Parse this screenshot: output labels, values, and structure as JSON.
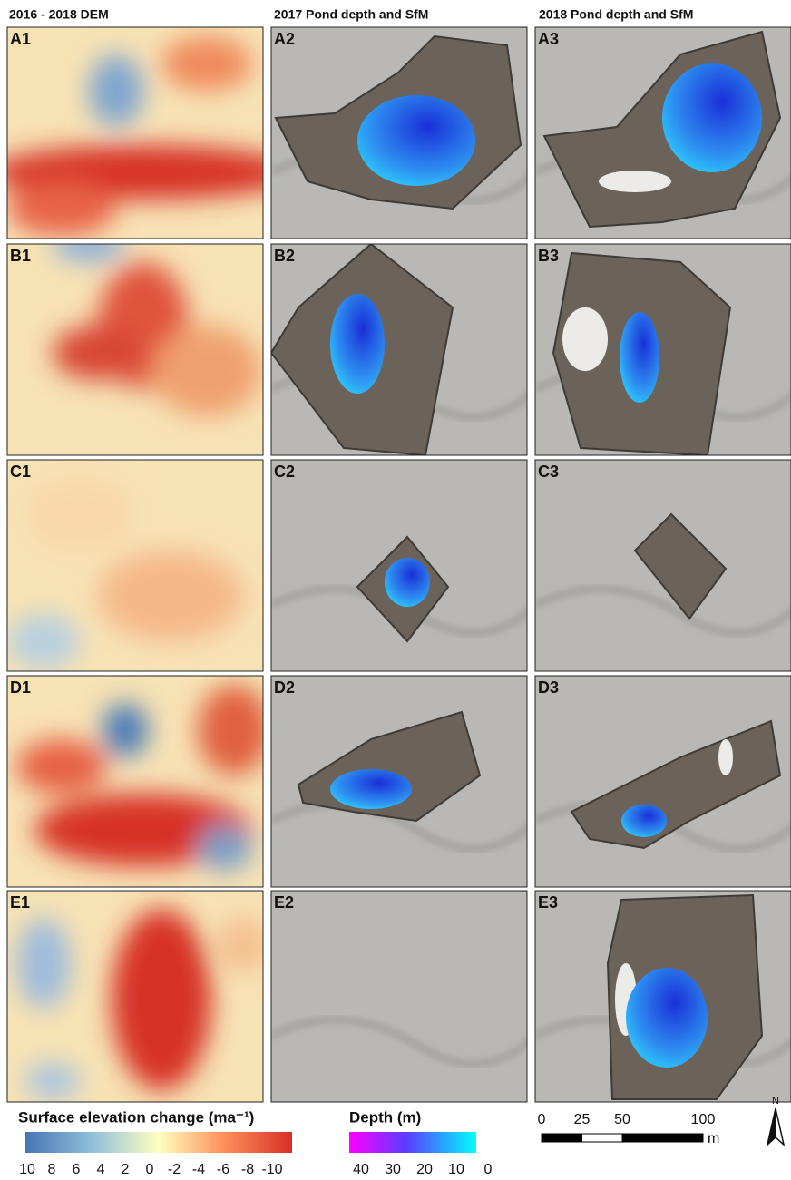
{
  "headers": [
    "2016 - 2018 DEM",
    "2017 Pond depth and SfM",
    "2018 Pond depth and SfM"
  ],
  "panels": [
    [
      "A1",
      "A2",
      "A3"
    ],
    [
      "B1",
      "B2",
      "B3"
    ],
    [
      "C1",
      "C2",
      "C3"
    ],
    [
      "D1",
      "D2",
      "D3"
    ],
    [
      "E1",
      "E2",
      "E3"
    ]
  ],
  "elevation_legend": {
    "title": "Surface elevation change (ma⁻¹)",
    "ticks": [
      10,
      8,
      6,
      4,
      2,
      0,
      -2,
      -4,
      -6,
      -8,
      -10
    ]
  },
  "depth_legend": {
    "title": "Depth (m)",
    "ticks": [
      40,
      30,
      20,
      10,
      0
    ]
  },
  "scale_bar": {
    "ticks": [
      0,
      25,
      50,
      100
    ],
    "unit": "m"
  },
  "north": "N"
}
